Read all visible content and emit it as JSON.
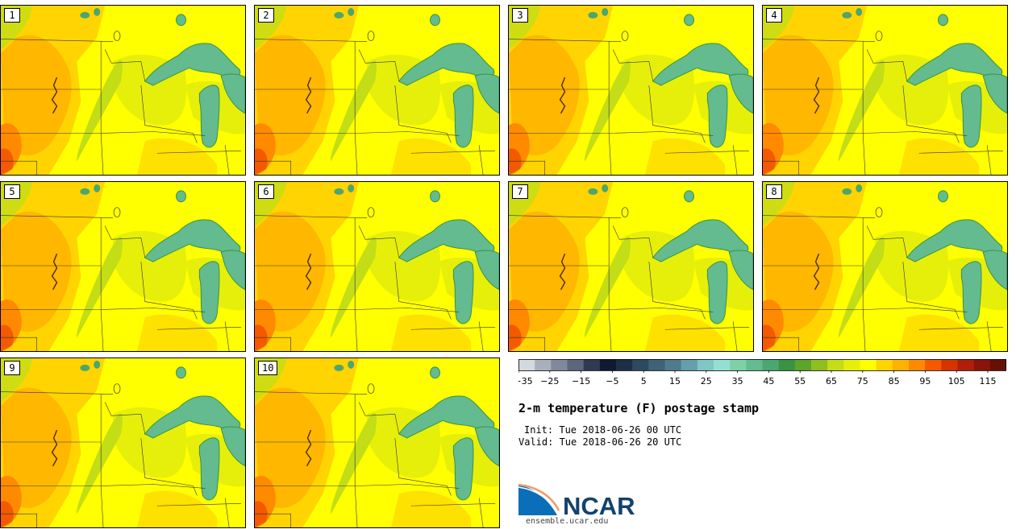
{
  "title": "2-m temperature (F) postage stamp",
  "init": "Init: Tue 2018-06-26 00 UTC",
  "valid": "Valid: Tue 2018-06-26 20 UTC",
  "logo": {
    "name": "ncar-logo",
    "text": "NCAR",
    "url": "ensemble.ucar.edu"
  },
  "members": [
    "1",
    "2",
    "3",
    "4",
    "5",
    "6",
    "7",
    "8",
    "9",
    "10"
  ],
  "colorbar": {
    "tick_labels": [
      "−35",
      "−25",
      "−15",
      "−5",
      "5",
      "15",
      "25",
      "35",
      "45",
      "55",
      "65",
      "75",
      "85",
      "95",
      "105",
      "115"
    ],
    "colors": [
      "#d4d8df",
      "#a9b0bc",
      "#7f899b",
      "#5b677d",
      "#303a52",
      "#111a30",
      "#1d2f45",
      "#2c4a60",
      "#3f6276",
      "#4f7b8c",
      "#65a0a8",
      "#7fc6c4",
      "#93e0d2",
      "#7fd0a9",
      "#63bb8f",
      "#4ca66f",
      "#3a9243",
      "#5aa52a",
      "#8fbe1f",
      "#c3dd16",
      "#e6ef0a",
      "#ffff00",
      "#ffd400",
      "#ffb100",
      "#ff8a00",
      "#f35a00",
      "#d43400",
      "#b01e0a",
      "#8a1408",
      "#661006"
    ]
  }
}
